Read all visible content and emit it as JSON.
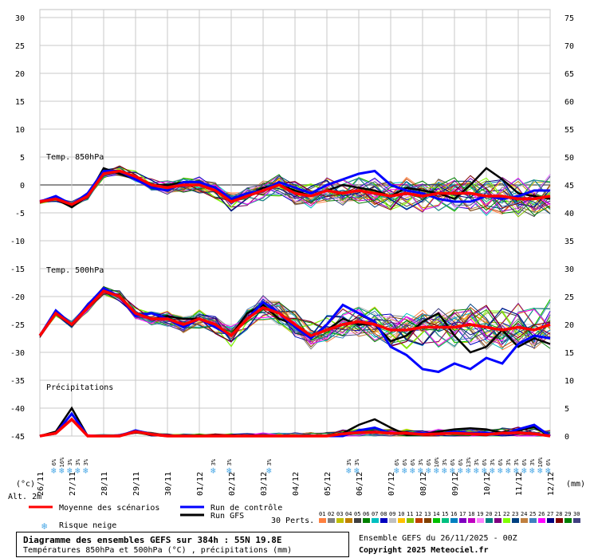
{
  "chart_data": {
    "type": "line",
    "y_left": {
      "min": -45,
      "max": 30,
      "ticks": [
        30,
        25,
        20,
        15,
        10,
        5,
        0,
        -5,
        -10,
        -15,
        -20,
        -25,
        -30,
        -35,
        -40,
        -45
      ],
      "unit_label": "(°c)"
    },
    "y_right": {
      "min": 0,
      "max": 75,
      "ticks": [
        75,
        70,
        65,
        60,
        55,
        50,
        45,
        40,
        35,
        30,
        25,
        20,
        15,
        10,
        5,
        0
      ],
      "unit_label": "(mm)"
    },
    "x_labels": [
      "26/11",
      "27/11",
      "28/11",
      "29/11",
      "30/11",
      "01/12",
      "02/12",
      "03/12",
      "04/12",
      "05/12",
      "06/12",
      "07/12",
      "08/12",
      "09/12",
      "10/12",
      "11/12",
      "12/12"
    ],
    "section_labels": {
      "t850": "Temp. 850hPa",
      "t500": "Temp. 500hPa",
      "precip": "Précipitations"
    },
    "alt_label": "Alt. 2m",
    "grid": true,
    "t850": {
      "x": [
        0,
        0.5,
        1,
        1.5,
        2,
        2.5,
        3,
        3.5,
        4,
        4.5,
        5,
        5.5,
        6,
        6.5,
        7,
        7.5,
        8,
        8.5,
        9,
        9.5,
        10,
        10.5,
        11,
        11.5,
        12,
        12.5,
        13,
        13.5,
        14,
        14.5,
        15,
        15.5,
        16
      ],
      "mean": [
        -3,
        -2.5,
        -3.5,
        -2,
        2,
        2.5,
        1.5,
        0,
        -0.5,
        0,
        0,
        -1,
        -3,
        -2,
        -1,
        0,
        -1.5,
        -2,
        -1,
        -1.5,
        -1,
        -1.5,
        -2,
        -1.5,
        -2,
        -1.5,
        -1.5,
        -1.5,
        -2,
        -2,
        -2.5,
        -2.5,
        -2
      ],
      "control": [
        -3,
        -2,
        -3.5,
        -1.5,
        2.5,
        2.5,
        1,
        -0.5,
        -1,
        0.5,
        0.5,
        -0.5,
        -2.5,
        -1.5,
        -1,
        0.5,
        -0.5,
        -1.5,
        0,
        1,
        2,
        2.5,
        0,
        -1,
        -1.5,
        -2.5,
        -3,
        -3,
        -2,
        -2.5,
        -2,
        -1,
        -1
      ],
      "gfs": [
        -3,
        -2.5,
        -4,
        -2,
        3,
        2,
        1,
        0,
        0,
        0.5,
        0.5,
        -0.5,
        -2.5,
        -2,
        -0.5,
        0,
        -1,
        -2,
        -1,
        0,
        -0.5,
        -1,
        -2,
        -0.5,
        -1,
        -1.5,
        -2.5,
        0,
        3,
        1,
        -1.5,
        -2,
        -2.5
      ]
    },
    "t500": {
      "x": [
        0,
        0.5,
        1,
        1.5,
        2,
        2.5,
        3,
        3.5,
        4,
        4.5,
        5,
        5.5,
        6,
        6.5,
        7,
        7.5,
        8,
        8.5,
        9,
        9.5,
        10,
        10.5,
        11,
        11.5,
        12,
        12.5,
        13,
        13.5,
        14,
        14.5,
        15,
        15.5,
        16
      ],
      "mean": [
        -27,
        -23,
        -25,
        -22,
        -19,
        -20,
        -23,
        -24,
        -24,
        -25,
        -24,
        -25,
        -27,
        -24,
        -22,
        -23,
        -25,
        -27,
        -26,
        -25,
        -24.5,
        -25,
        -26,
        -26,
        -25.5,
        -25.5,
        -25.5,
        -25,
        -25.5,
        -26,
        -25.5,
        -26,
        -25
      ],
      "control": [
        -27,
        -22.5,
        -25,
        -21.5,
        -18.5,
        -20,
        -23.5,
        -23,
        -24,
        -25.5,
        -24,
        -25.5,
        -27,
        -24,
        -21,
        -23,
        -25.5,
        -27.5,
        -25,
        -21.5,
        -23,
        -24.5,
        -29,
        -30.5,
        -33,
        -33.5,
        -32,
        -33,
        -31,
        -32,
        -28.5,
        -27,
        -27.5
      ],
      "gfs": [
        -27,
        -23,
        -25,
        -22,
        -19,
        -20,
        -23,
        -24,
        -23.5,
        -24,
        -24,
        -25,
        -27,
        -23,
        -21.5,
        -24,
        -25,
        -27,
        -26,
        -24,
        -25,
        -25,
        -28,
        -27,
        -24.5,
        -23,
        -27,
        -30,
        -29,
        -26,
        -29,
        -27.5,
        -28.5
      ]
    },
    "precip_mm": {
      "x": [
        0,
        0.5,
        1,
        1.5,
        2,
        2.5,
        3,
        3.5,
        4,
        4.5,
        5,
        5.5,
        6,
        6.5,
        7,
        7.5,
        8,
        8.5,
        9,
        9.5,
        10,
        10.5,
        11,
        11.5,
        12,
        12.5,
        13,
        13.5,
        14,
        14.5,
        15,
        15.5,
        16
      ],
      "mean": [
        0,
        0.5,
        3,
        0,
        0,
        0,
        0.8,
        0.3,
        0,
        0,
        0,
        0,
        0,
        0,
        0,
        0,
        0,
        0,
        0,
        0.4,
        0.6,
        0.7,
        0.5,
        0.5,
        0.3,
        0.4,
        0.5,
        0.4,
        0.3,
        0.5,
        0.6,
        0.4,
        0
      ],
      "control": [
        0,
        0.5,
        4,
        0,
        0,
        0,
        1,
        0.3,
        0,
        0,
        0,
        0,
        0,
        0,
        0,
        0,
        0,
        0,
        0,
        0,
        1,
        1.5,
        0.5,
        0.5,
        0.5,
        0.3,
        0.8,
        0.5,
        0.6,
        0.3,
        1.2,
        2,
        0
      ],
      "gfs": [
        0,
        0.8,
        5,
        0,
        0,
        0,
        0.7,
        0.2,
        0,
        0,
        0,
        0,
        0,
        0,
        0,
        0,
        0,
        0,
        0,
        0.5,
        2,
        3,
        1.5,
        0.2,
        0.3,
        0.8,
        1.2,
        1.4,
        1.2,
        0.6,
        1,
        1.6,
        0
      ]
    },
    "snow_risk": [
      {
        "x": 0.45,
        "lines": [
          "6%"
        ]
      },
      {
        "x": 0.7,
        "lines": [
          "16%"
        ]
      },
      {
        "x": 0.95,
        "lines": [
          "3%"
        ]
      },
      {
        "x": 1.2,
        "lines": [
          "3%"
        ]
      },
      {
        "x": 1.45,
        "lines": [
          "3%"
        ]
      },
      {
        "x": 5.45,
        "lines": [
          "3%"
        ]
      },
      {
        "x": 5.95,
        "lines": [
          "3%"
        ]
      },
      {
        "x": 7.2,
        "lines": [
          "3%"
        ]
      },
      {
        "x": 9.7,
        "lines": [
          "3%"
        ]
      },
      {
        "x": 9.95,
        "lines": [
          "3%"
        ]
      },
      {
        "x": 11.2,
        "lines": [
          "6%"
        ]
      },
      {
        "x": 11.45,
        "lines": [
          "6%"
        ]
      },
      {
        "x": 11.7,
        "lines": [
          "6%"
        ]
      },
      {
        "x": 11.95,
        "lines": [
          "3%"
        ]
      },
      {
        "x": 12.2,
        "lines": [
          "6%"
        ]
      },
      {
        "x": 12.45,
        "lines": [
          "10%"
        ]
      },
      {
        "x": 12.7,
        "lines": [
          "3%"
        ]
      },
      {
        "x": 12.95,
        "lines": [
          "6%"
        ]
      },
      {
        "x": 13.2,
        "lines": [
          "6%"
        ]
      },
      {
        "x": 13.45,
        "lines": [
          "13%"
        ]
      },
      {
        "x": 13.7,
        "lines": [
          "3%"
        ]
      },
      {
        "x": 13.95,
        "lines": [
          "6%"
        ]
      },
      {
        "x": 14.2,
        "lines": [
          "3%"
        ]
      },
      {
        "x": 14.45,
        "lines": [
          "6%"
        ]
      },
      {
        "x": 14.7,
        "lines": [
          "3%"
        ]
      },
      {
        "x": 14.95,
        "lines": [
          "3%"
        ]
      },
      {
        "x": 15.2,
        "lines": [
          "6%"
        ]
      },
      {
        "x": 15.45,
        "lines": [
          "3%"
        ]
      },
      {
        "x": 15.7,
        "lines": [
          "10%"
        ]
      },
      {
        "x": 15.95,
        "lines": [
          "6%"
        ]
      }
    ],
    "legend": {
      "mean": "Moyenne des scénarios",
      "control": "Run de contrôle",
      "gfs": "Run GFS",
      "snow": "Risque neige",
      "perts_label": "30 Perts."
    },
    "perturbations": [
      "01",
      "02",
      "03",
      "04",
      "05",
      "06",
      "07",
      "08",
      "09",
      "10",
      "11",
      "12",
      "13",
      "14",
      "15",
      "16",
      "17",
      "18",
      "19",
      "20",
      "21",
      "22",
      "23",
      "24",
      "25",
      "26",
      "27",
      "28",
      "29",
      "30"
    ],
    "pert_colors": [
      "#ff8040",
      "#808080",
      "#c0c000",
      "#c08000",
      "#404040",
      "#008000",
      "#00c0c0",
      "#0000c0",
      "#c0c0c0",
      "#ffc000",
      "#80c000",
      "#c04000",
      "#804000",
      "#00c000",
      "#00c080",
      "#0080c0",
      "#8000c0",
      "#c000c0",
      "#ff80ff",
      "#008080",
      "#800080",
      "#80ff00",
      "#004080",
      "#c08040",
      "#4080c0",
      "#ff00ff",
      "#000080",
      "#800000",
      "#008000",
      "#404080"
    ],
    "colors": {
      "mean": "#ff0000",
      "control": "#0000ff",
      "gfs": "#000000"
    }
  },
  "footer": {
    "title": "Diagramme des ensembles GEFS sur 384h : 55N 19.8E",
    "subtitle": "Températures 850hPa et 500hPa (°C) , précipitations (mm)",
    "ensemble": "Ensemble GEFS du 26/11/2025 - 00Z",
    "copyright": "Copyright 2025 Meteociel.fr"
  }
}
